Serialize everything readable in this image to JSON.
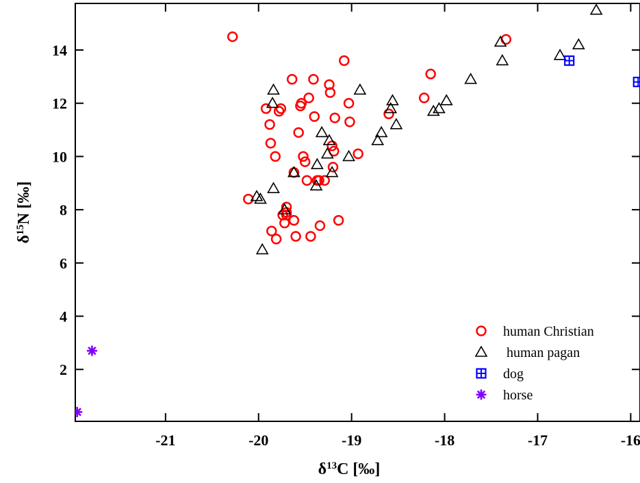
{
  "chart_data": {
    "type": "scatter",
    "title": "",
    "xlabel": "δ13C [‰]",
    "ylabel": "δ15N [‰]",
    "xlim": [
      -21.97,
      -15.9
    ],
    "ylim": [
      0.05,
      15.75
    ],
    "x_ticks": [
      -21,
      -20,
      -19,
      -18,
      -17,
      -16
    ],
    "y_ticks": [
      2,
      4,
      6,
      8,
      10,
      12,
      14
    ],
    "x_tick_labels": [
      "-21",
      "-20",
      "-19",
      "-18",
      "-17",
      "-16"
    ],
    "y_tick_labels": [
      "2",
      "4",
      "6",
      "8",
      "10",
      "12",
      "14"
    ],
    "grid": false,
    "legend_position": "bottom-right",
    "series": [
      {
        "name": "human Christian",
        "marker": "open-circle",
        "color": "#ff0000",
        "x": [
          -20.28,
          -19.92,
          -19.88,
          -19.87,
          -19.82,
          -19.78,
          -19.76,
          -19.74,
          -19.72,
          -19.7,
          -19.7,
          -19.7,
          -19.64,
          -19.62,
          -19.62,
          -19.57,
          -19.55,
          -19.54,
          -19.52,
          -19.5,
          -19.48,
          -19.46,
          -19.44,
          -19.41,
          -19.4,
          -19.37,
          -19.35,
          -19.34,
          -19.29,
          -19.24,
          -19.23,
          -19.21,
          -19.2,
          -19.19,
          -19.18,
          -19.14,
          -19.08,
          -19.03,
          -19.02,
          -18.93,
          -18.6,
          -18.22,
          -18.15,
          -17.34,
          -20.11,
          -19.86,
          -19.81,
          -19.6
        ],
        "y": [
          14.5,
          11.8,
          11.2,
          10.5,
          10.0,
          11.7,
          11.8,
          7.8,
          7.5,
          8.1,
          7.9,
          7.8,
          12.9,
          9.4,
          7.6,
          10.9,
          11.9,
          12.0,
          10.0,
          9.8,
          9.1,
          12.2,
          7.0,
          12.9,
          11.5,
          9.1,
          9.1,
          7.4,
          9.1,
          12.7,
          12.4,
          10.4,
          9.6,
          10.2,
          11.45,
          7.6,
          13.6,
          12.0,
          11.3,
          10.1,
          11.6,
          12.2,
          13.1,
          14.4,
          8.4,
          7.2,
          6.9,
          7.0
        ]
      },
      {
        "name": "human pagan",
        "marker": "open-triangle",
        "color": "#000000",
        "x": [
          -20.02,
          -19.98,
          -19.96,
          -19.84,
          -19.84,
          -19.85,
          -19.72,
          -19.62,
          -19.38,
          -19.37,
          -19.32,
          -19.26,
          -19.24,
          -19.21,
          -19.03,
          -18.91,
          -18.72,
          -18.68,
          -18.58,
          -18.56,
          -18.52,
          -18.12,
          -18.06,
          -17.98,
          -17.72,
          -17.4,
          -17.38,
          -16.76,
          -16.56,
          -16.37
        ],
        "y": [
          8.5,
          8.4,
          6.5,
          8.8,
          12.5,
          12.0,
          8.0,
          9.4,
          8.9,
          9.7,
          10.9,
          10.1,
          10.6,
          9.4,
          10.0,
          12.5,
          10.6,
          10.9,
          11.8,
          12.1,
          11.2,
          11.7,
          11.8,
          12.1,
          12.9,
          14.3,
          13.6,
          13.8,
          14.2,
          15.5
        ]
      },
      {
        "name": "dog",
        "marker": "boxed-plus",
        "color": "#0000ff",
        "x": [
          -16.66,
          -15.92
        ],
        "y": [
          13.6,
          12.8
        ]
      },
      {
        "name": "horse",
        "marker": "asterisk",
        "color": "#8000ff",
        "x": [
          -21.79,
          -21.95
        ],
        "y": [
          2.7,
          0.4
        ]
      }
    ]
  }
}
